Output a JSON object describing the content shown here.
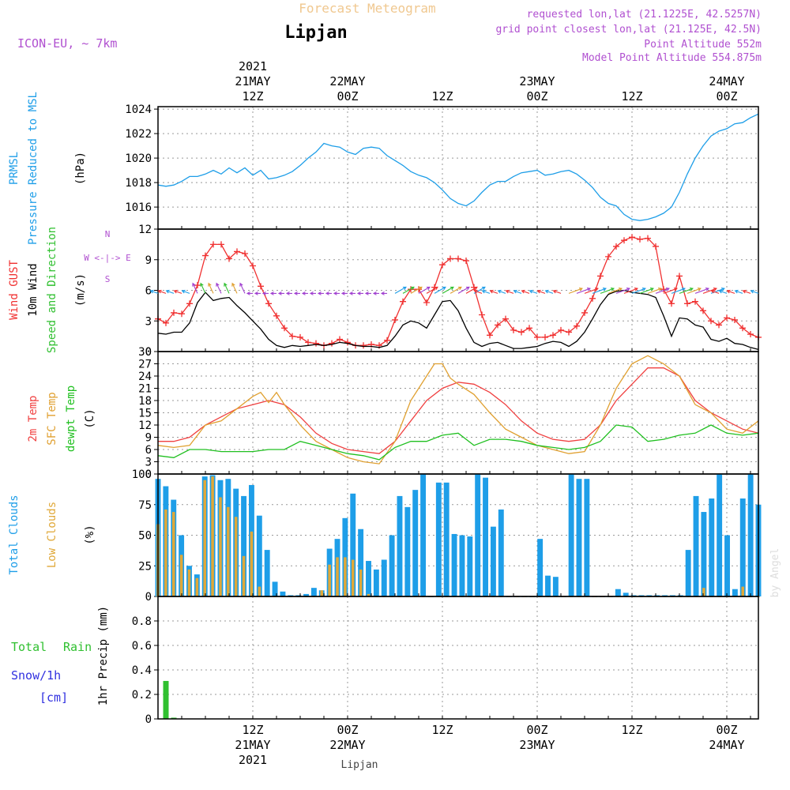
{
  "header": {
    "app_title": "Forecast Meteogram",
    "location": "Lipjan",
    "model": "ICON-EU, ~ 7km",
    "requested": "requested lon,lat (21.1225E, 42.5257N)",
    "grid_point": "grid point closest lon,lat (21.125E, 42.5N)",
    "point_alt": "Point Altitude 552m",
    "model_alt": "Model Point Altitude 554.875m",
    "footer": "Lipjan",
    "watermark": "by Angel"
  },
  "time_axis": {
    "top": [
      {
        "lines": [
          "2021",
          "21MAY",
          "12Z"
        ],
        "hour": 12
      },
      {
        "lines": [
          "22MAY",
          "00Z"
        ],
        "hour": 24
      },
      {
        "lines": [
          "12Z"
        ],
        "hour": 36
      },
      {
        "lines": [
          "23MAY",
          "00Z"
        ],
        "hour": 48
      },
      {
        "lines": [
          "12Z"
        ],
        "hour": 60
      },
      {
        "lines": [
          "24MAY",
          "00Z"
        ],
        "hour": 72
      }
    ],
    "bottom": [
      {
        "lines": [
          "12Z",
          "21MAY",
          "2021"
        ],
        "hour": 12
      },
      {
        "lines": [
          "00Z",
          "22MAY"
        ],
        "hour": 24
      },
      {
        "lines": [
          "12Z"
        ],
        "hour": 36
      },
      {
        "lines": [
          "00Z",
          "23MAY"
        ],
        "hour": 48
      },
      {
        "lines": [
          "12Z"
        ],
        "hour": 60
      },
      {
        "lines": [
          "00Z",
          "24MAY"
        ],
        "hour": 72
      }
    ]
  },
  "colors": {
    "pressure": "#1e9ee8",
    "gust": "#f03030",
    "wind": "#000000",
    "wind_label": "#30c030",
    "t2m": "#f04040",
    "sfc": "#e0a030",
    "dewpt": "#20c020",
    "total_cloud": "#1e9ee8",
    "low_cloud": "#e0a838",
    "rain": "#30c030",
    "snow": "#3030e0",
    "purple": "#b050d0",
    "title": "#f0c890"
  },
  "panel_labels": {
    "pressure": [
      "PRMSL",
      "Pressure Reduced to MSL",
      "(hPa)"
    ],
    "wind": [
      "Wind GUST",
      "10m Wind",
      "Speed and Direction",
      "(m/s)"
    ],
    "compass": [
      "N",
      "W <-|-> E",
      "S"
    ],
    "temp": [
      "2m Temp",
      "SFC Temp",
      "dewpt Temp",
      "(C)"
    ],
    "cloud": [
      "Total Clouds",
      "Low Clouds",
      "(%)"
    ],
    "precip": [
      "Total",
      "Rain",
      "Snow/1h",
      "[cm]",
      "1hr Precip (mm)"
    ]
  },
  "chart_data": [
    {
      "type": "line",
      "panel": "pressure",
      "ylabel": "(hPa)",
      "yticks": [
        1016,
        1018,
        1020,
        1022,
        1024
      ],
      "ylim": [
        1014.2,
        1024.2
      ],
      "series": [
        {
          "name": "PRMSL",
          "x": [
            0,
            1,
            2,
            3,
            4,
            5,
            6,
            7,
            8,
            9,
            10,
            11,
            12,
            13,
            14,
            15,
            16,
            17,
            18,
            19,
            20,
            21,
            22,
            23,
            24,
            25,
            26,
            27,
            28,
            29,
            30,
            31,
            32,
            33,
            34,
            35,
            36,
            37,
            38,
            39,
            40,
            41,
            42,
            43,
            44,
            45,
            46,
            47,
            48,
            49,
            50,
            51,
            52,
            53,
            54,
            55,
            56,
            57,
            58,
            59,
            60,
            61,
            62,
            63,
            64,
            65,
            66,
            67,
            68,
            69,
            70,
            71,
            72,
            73,
            74,
            75,
            76
          ],
          "y": [
            1017.8,
            1017.7,
            1017.8,
            1018.1,
            1018.5,
            1018.5,
            1018.7,
            1019.0,
            1018.7,
            1019.2,
            1018.8,
            1019.2,
            1018.6,
            1019.0,
            1018.3,
            1018.4,
            1018.6,
            1018.9,
            1019.4,
            1020.0,
            1020.5,
            1021.2,
            1021.0,
            1020.9,
            1020.5,
            1020.3,
            1020.8,
            1020.9,
            1020.8,
            1020.2,
            1019.8,
            1019.4,
            1018.9,
            1018.6,
            1018.4,
            1018.0,
            1017.4,
            1016.7,
            1016.3,
            1016.1,
            1016.5,
            1017.2,
            1017.8,
            1018.1,
            1018.1,
            1018.5,
            1018.8,
            1018.9,
            1019.0,
            1018.6,
            1018.7,
            1018.9,
            1019.0,
            1018.7,
            1018.2,
            1017.6,
            1016.8,
            1016.3,
            1016.1,
            1015.4,
            1015.0,
            1014.9,
            1015.0,
            1015.2,
            1015.5,
            1016.0,
            1017.2,
            1018.7,
            1020.0,
            1021.0,
            1021.8,
            1022.2,
            1022.4,
            1022.8,
            1022.9,
            1023.3,
            1023.6
          ]
        }
      ]
    },
    {
      "type": "line",
      "panel": "wind",
      "ylabel": "(m/s)",
      "yticks": [
        0,
        3,
        6,
        9,
        12
      ],
      "ylim": [
        0,
        12
      ],
      "series": [
        {
          "name": "Wind GUST",
          "x": [
            0,
            1,
            2,
            3,
            4,
            5,
            6,
            7,
            8,
            9,
            10,
            11,
            12,
            13,
            14,
            15,
            16,
            17,
            18,
            19,
            20,
            21,
            22,
            23,
            24,
            25,
            26,
            27,
            28,
            29,
            30,
            31,
            32,
            33,
            34,
            35,
            36,
            37,
            38,
            39,
            40,
            41,
            42,
            43,
            44,
            45,
            46,
            47,
            48,
            49,
            50,
            51,
            52,
            53,
            54,
            55,
            56,
            57,
            58,
            59,
            60,
            61,
            62,
            63,
            64,
            65,
            66,
            67,
            68,
            69,
            70,
            71,
            72,
            73,
            74,
            75,
            76
          ],
          "y": [
            3.2,
            2.8,
            3.8,
            3.7,
            4.7,
            6.5,
            9.4,
            10.5,
            10.5,
            9.1,
            9.8,
            9.6,
            8.4,
            6.4,
            4.7,
            3.5,
            2.3,
            1.5,
            1.4,
            0.9,
            0.8,
            0.6,
            0.8,
            1.2,
            0.9,
            0.6,
            0.6,
            0.7,
            0.6,
            1.1,
            3.1,
            4.9,
            6.1,
            6.1,
            4.8,
            6.3,
            8.5,
            9.1,
            9.1,
            8.9,
            6.3,
            3.6,
            1.6,
            2.6,
            3.2,
            2.1,
            1.9,
            2.3,
            1.4,
            1.4,
            1.6,
            2.1,
            1.9,
            2.5,
            3.8,
            5.2,
            7.4,
            9.3,
            10.3,
            10.9,
            11.2,
            11.0,
            11.1,
            10.3,
            6.1,
            4.7,
            7.4,
            4.7,
            4.9,
            4.0,
            3.0,
            2.6,
            3.3,
            3.1,
            2.3,
            1.7,
            1.4
          ]
        },
        {
          "name": "10m Wind",
          "x": [
            0,
            1,
            2,
            3,
            4,
            5,
            6,
            7,
            8,
            9,
            10,
            11,
            12,
            13,
            14,
            15,
            16,
            17,
            18,
            19,
            20,
            21,
            22,
            23,
            24,
            25,
            26,
            27,
            28,
            29,
            30,
            31,
            32,
            33,
            34,
            35,
            36,
            37,
            38,
            39,
            40,
            41,
            42,
            43,
            44,
            45,
            46,
            47,
            48,
            49,
            50,
            51,
            52,
            53,
            54,
            55,
            56,
            57,
            58,
            59,
            60,
            61,
            62,
            63,
            64,
            65,
            66,
            67,
            68,
            69,
            70,
            71,
            72,
            73,
            74,
            75,
            76
          ],
          "y": [
            1.8,
            1.7,
            1.9,
            1.9,
            2.8,
            4.8,
            5.8,
            5.0,
            5.2,
            5.3,
            4.5,
            3.8,
            3.0,
            2.2,
            1.2,
            0.6,
            0.4,
            0.6,
            0.5,
            0.6,
            0.7,
            0.6,
            0.7,
            0.9,
            0.8,
            0.6,
            0.5,
            0.5,
            0.4,
            0.6,
            1.5,
            2.6,
            3.0,
            2.8,
            2.3,
            3.6,
            4.9,
            5.0,
            4.0,
            2.3,
            0.9,
            0.5,
            0.8,
            0.9,
            0.6,
            0.3,
            0.3,
            0.4,
            0.5,
            0.8,
            1.0,
            0.9,
            0.5,
            1.0,
            1.9,
            3.2,
            4.6,
            5.6,
            5.9,
            6.0,
            5.8,
            5.7,
            5.6,
            5.3,
            3.5,
            1.5,
            3.3,
            3.2,
            2.6,
            2.4,
            1.2,
            1.0,
            1.3,
            0.8,
            0.7,
            0.4,
            0.2
          ]
        }
      ]
    },
    {
      "type": "line",
      "panel": "temperature",
      "ylabel": "(C)",
      "yticks": [
        0,
        3,
        6,
        9,
        12,
        15,
        18,
        21,
        24,
        27,
        30
      ],
      "ylim": [
        0,
        30
      ],
      "series": [
        {
          "name": "2m Temp",
          "x": [
            0,
            2,
            4,
            6,
            8,
            10,
            12,
            14,
            16,
            18,
            20,
            22,
            24,
            26,
            28,
            30,
            32,
            34,
            36,
            38,
            40,
            42,
            44,
            46,
            48,
            50,
            52,
            54,
            56,
            58,
            60,
            62,
            64,
            66,
            68,
            70,
            72,
            74,
            76
          ],
          "y": [
            8,
            8,
            9,
            12,
            14,
            16,
            17,
            18,
            17,
            14,
            10,
            7.5,
            6,
            5.5,
            5,
            8,
            13,
            18,
            21,
            22.5,
            22,
            20,
            17,
            13,
            10,
            8.5,
            8,
            8.5,
            12,
            18,
            22,
            26,
            26,
            24,
            18,
            15,
            13,
            11,
            10
          ]
        },
        {
          "name": "SFC Temp",
          "x": [
            0,
            2,
            4,
            6,
            8,
            10,
            12,
            13,
            14,
            15,
            16,
            18,
            20,
            22,
            24,
            26,
            28,
            30,
            32,
            34,
            35,
            36,
            37,
            38,
            40,
            42,
            44,
            46,
            48,
            50,
            52,
            54,
            56,
            58,
            60,
            62,
            64,
            66,
            68,
            70,
            72,
            74,
            76
          ],
          "y": [
            7,
            6.5,
            7,
            12,
            13,
            16,
            19,
            20,
            17.5,
            20,
            17,
            12,
            8,
            6,
            4,
            3,
            2.5,
            8,
            18,
            24,
            27,
            27,
            23.5,
            22,
            19.5,
            15,
            11,
            9,
            7,
            6,
            5,
            5.5,
            12,
            21,
            27,
            29,
            27,
            24,
            17,
            15,
            11,
            10,
            13
          ]
        },
        {
          "name": "dewpt Temp",
          "x": [
            0,
            2,
            4,
            6,
            8,
            10,
            12,
            14,
            16,
            18,
            20,
            22,
            24,
            26,
            28,
            30,
            32,
            34,
            36,
            38,
            40,
            42,
            44,
            46,
            48,
            50,
            52,
            54,
            56,
            58,
            60,
            62,
            64,
            66,
            68,
            70,
            72,
            74,
            76
          ],
          "y": [
            4.5,
            4,
            6,
            6,
            5.5,
            5.5,
            5.5,
            6,
            6,
            8,
            7,
            6,
            5,
            4.5,
            3.5,
            6.5,
            8,
            8,
            9.5,
            10,
            7,
            8.5,
            8.5,
            8,
            7,
            6.5,
            6,
            6.5,
            8,
            12,
            11.5,
            8,
            8.5,
            9.5,
            10,
            12,
            10,
            9.5,
            10
          ]
        }
      ]
    },
    {
      "type": "bar",
      "panel": "clouds",
      "ylabel": "(%)",
      "yticks": [
        0,
        25,
        50,
        75,
        100
      ],
      "ylim": [
        0,
        100
      ],
      "series": [
        {
          "name": "Total Clouds",
          "values": [
            96,
            90,
            79,
            50,
            25,
            18,
            98,
            99,
            95,
            96,
            88,
            82,
            91,
            66,
            38,
            12,
            4,
            1,
            1,
            2,
            7,
            5,
            39,
            47,
            64,
            84,
            55,
            29,
            22,
            30,
            50,
            82,
            73,
            87,
            100,
            0,
            93,
            93,
            51,
            50,
            49,
            100,
            97,
            57,
            71,
            0,
            0,
            0,
            0,
            47,
            17,
            16,
            0,
            100,
            96,
            96,
            0,
            0,
            0,
            6,
            3,
            1,
            1,
            1,
            1,
            1,
            1,
            1,
            38,
            82,
            69,
            80,
            100,
            50,
            6,
            80,
            100,
            75
          ]
        },
        {
          "name": "Low Clouds",
          "values": [
            59,
            71,
            69,
            34,
            22,
            15,
            95,
            98,
            81,
            73,
            65,
            33,
            53,
            8,
            0,
            0,
            0,
            0,
            0,
            0,
            0,
            5,
            26,
            32,
            32,
            30,
            22,
            2,
            0,
            0,
            0,
            0,
            0,
            0,
            0,
            0,
            0,
            0,
            0,
            0,
            0,
            0,
            0,
            0,
            0,
            0,
            0,
            0,
            0,
            0,
            0,
            0,
            0,
            0,
            0,
            0,
            0,
            0,
            0,
            0,
            0,
            0,
            0,
            0,
            0,
            0,
            0,
            0,
            0,
            0,
            7,
            0,
            0,
            0,
            0,
            8,
            0,
            0
          ]
        }
      ]
    },
    {
      "type": "bar",
      "panel": "precip",
      "ylabel": "1hr Precip (mm)",
      "yticks": [
        0,
        0.2,
        0.4,
        0.6,
        0.8
      ],
      "ylim": [
        0,
        1
      ],
      "series": [
        {
          "name": "Total Rain",
          "x": [
            1,
            2
          ],
          "values": [
            0.31,
            0.01
          ]
        }
      ]
    }
  ]
}
